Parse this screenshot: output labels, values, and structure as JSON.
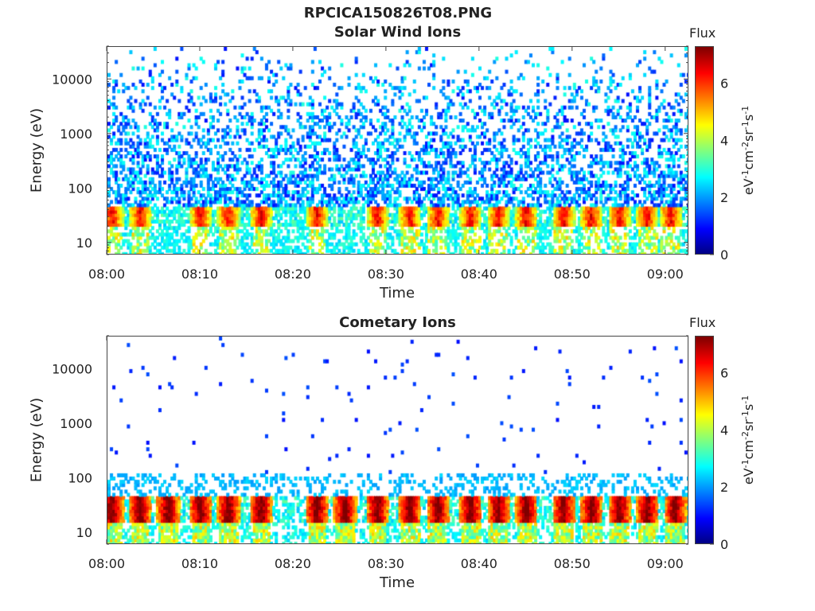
{
  "figure": {
    "title": "RPCICA150826T08.PNG"
  },
  "colormap": {
    "name": "jet",
    "stops": [
      "#00007f",
      "#0000ff",
      "#007fff",
      "#00ffff",
      "#7fff7f",
      "#ffff00",
      "#ff7f00",
      "#ff0000",
      "#7f0000"
    ],
    "background": "#ffffff"
  },
  "chart_data": [
    {
      "type": "heatmap",
      "title": "Solar Wind Ions",
      "xlabel": "Time",
      "ylabel": "Energy (eV)",
      "x_ticks": [
        "08:00",
        "08:10",
        "08:20",
        "08:30",
        "08:40",
        "08:50",
        "09:00"
      ],
      "x_tick_minutes": [
        0,
        10,
        20,
        30,
        40,
        50,
        60
      ],
      "xlim_minutes": [
        0,
        62.5
      ],
      "y_scale": "log",
      "y_ticks": [
        "10",
        "100",
        "1000",
        "10000"
      ],
      "y_tick_values": [
        10,
        100,
        1000,
        10000
      ],
      "ylim": [
        6,
        40000
      ],
      "colorbar": {
        "label": "Flux",
        "units_text": "eV",
        "units_sup1": "-1",
        "units_mid1": "cm",
        "units_sup2": "-2",
        "units_mid2": "sr",
        "units_sup3": "-1",
        "units_mid3": "s",
        "units_sup4": "-1",
        "ticks": [
          "0",
          "2",
          "4",
          "6"
        ],
        "tick_values": [
          0,
          2,
          4,
          6
        ],
        "range": [
          0,
          7.3
        ]
      },
      "ion_band_energy_eV": [
        20,
        45
      ],
      "scattered_flux_range": [
        1,
        3
      ],
      "burst_minutes": [
        0.5,
        3.5,
        10,
        13,
        16.5,
        22.5,
        29,
        32.5,
        35.5,
        39,
        42,
        45,
        49,
        52,
        55,
        58,
        60.5
      ],
      "burst_peak_flux": 6
    },
    {
      "type": "heatmap",
      "title": "Cometary Ions",
      "xlabel": "Time",
      "ylabel": "Energy (eV)",
      "x_ticks": [
        "08:00",
        "08:10",
        "08:20",
        "08:30",
        "08:40",
        "08:50",
        "09:00"
      ],
      "x_tick_minutes": [
        0,
        10,
        20,
        30,
        40,
        50,
        60
      ],
      "xlim_minutes": [
        0,
        62.5
      ],
      "y_scale": "log",
      "y_ticks": [
        "10",
        "100",
        "1000",
        "10000"
      ],
      "y_tick_values": [
        10,
        100,
        1000,
        10000
      ],
      "ylim": [
        6,
        40000
      ],
      "colorbar": {
        "label": "Flux",
        "units_text": "eV",
        "units_sup1": "-1",
        "units_mid1": "cm",
        "units_sup2": "-2",
        "units_mid2": "sr",
        "units_sup3": "-1",
        "units_mid3": "s",
        "units_sup4": "-1",
        "ticks": [
          "0",
          "2",
          "4",
          "6"
        ],
        "tick_values": [
          0,
          2,
          4,
          6
        ],
        "range": [
          0,
          7.3
        ]
      },
      "ion_band_energy_eV": [
        15,
        45
      ],
      "scattered_flux_range": [
        1,
        1.5
      ],
      "burst_minutes": [
        0.5,
        3.5,
        6.5,
        10,
        13,
        16.5,
        22.5,
        25.5,
        29,
        32.5,
        35.5,
        39,
        42,
        45,
        49,
        52,
        55,
        58,
        61
      ],
      "burst_peak_flux": 7
    }
  ]
}
